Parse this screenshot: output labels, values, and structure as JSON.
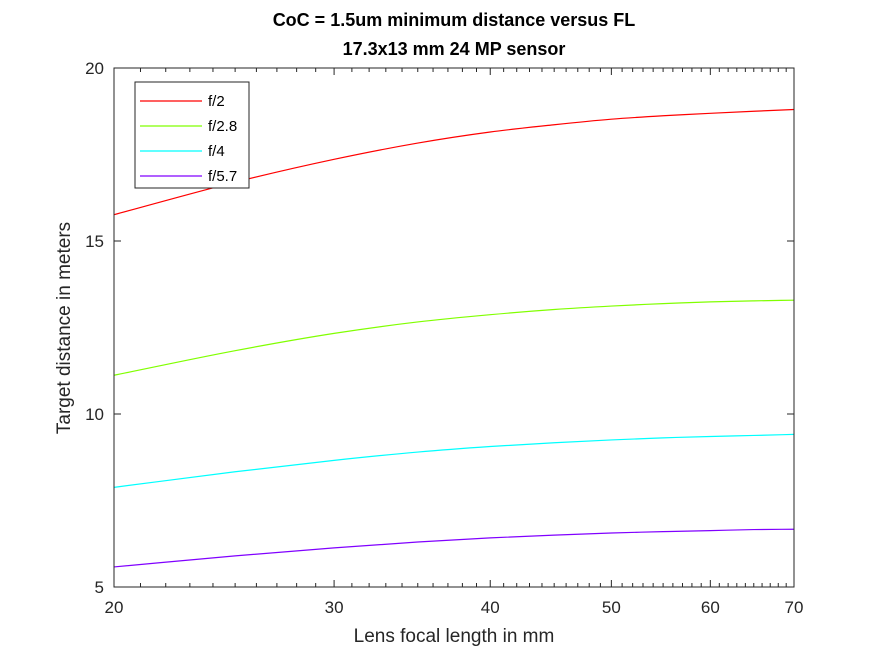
{
  "chart_data": {
    "type": "line",
    "title": [
      "CoC = 1.5um minimum distance versus FL",
      "17.3x13 mm 24 MP sensor"
    ],
    "xlabel": "Lens focal length in mm",
    "ylabel": "Target distance in meters",
    "xscale": "log",
    "xlim": [
      20,
      70
    ],
    "ylim": [
      5,
      20
    ],
    "xticks": [
      20,
      30,
      40,
      50,
      60,
      70
    ],
    "yticks": [
      5,
      10,
      15,
      20
    ],
    "grid": false,
    "legend_position": "top-left",
    "x": [
      20,
      25,
      30,
      35,
      40,
      45,
      50,
      55,
      60,
      65,
      70
    ],
    "series": [
      {
        "name": "f/2",
        "color": "#ff0000",
        "values": [
          15.76,
          16.7,
          17.36,
          17.83,
          18.15,
          18.36,
          18.52,
          18.62,
          18.69,
          18.75,
          18.8
        ]
      },
      {
        "name": "f/2.8",
        "color": "#80ff00",
        "values": [
          11.12,
          11.83,
          12.33,
          12.66,
          12.87,
          13.02,
          13.12,
          13.19,
          13.24,
          13.27,
          13.29
        ]
      },
      {
        "name": "f/4",
        "color": "#00ffff",
        "values": [
          7.88,
          8.33,
          8.66,
          8.9,
          9.06,
          9.17,
          9.25,
          9.31,
          9.35,
          9.38,
          9.41
        ]
      },
      {
        "name": "f/5.7",
        "color": "#8000ff",
        "values": [
          5.58,
          5.9,
          6.13,
          6.3,
          6.42,
          6.5,
          6.56,
          6.6,
          6.63,
          6.66,
          6.67
        ]
      }
    ]
  }
}
